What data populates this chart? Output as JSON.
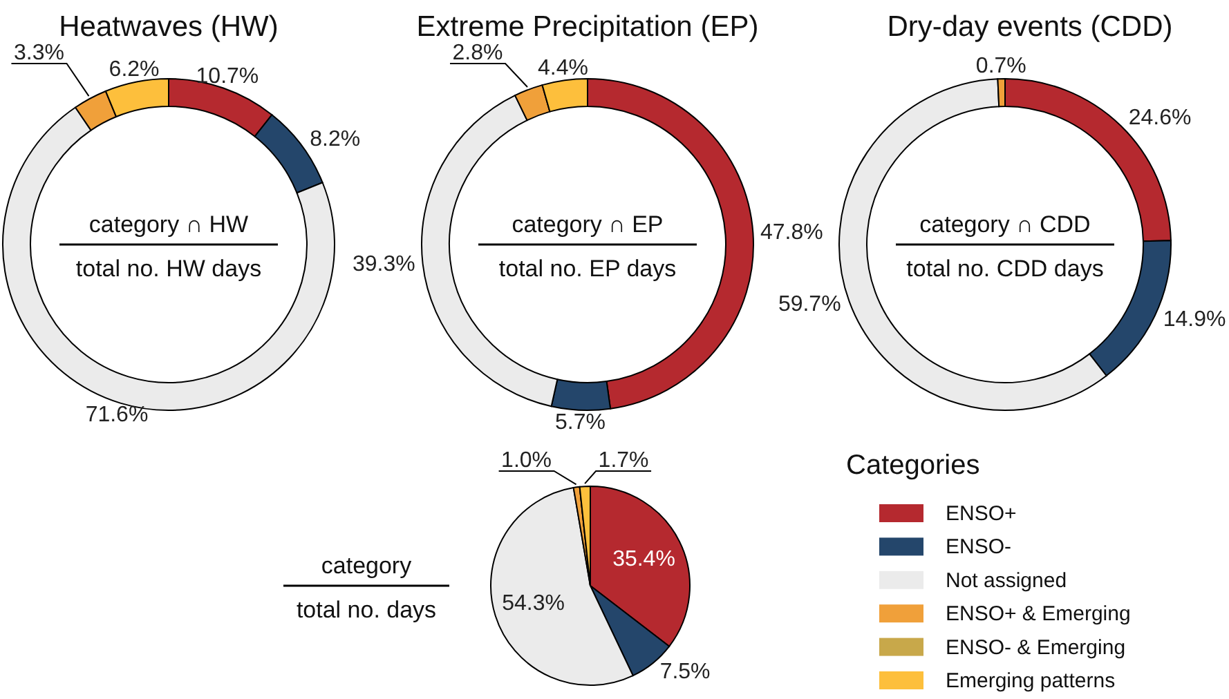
{
  "chart_data": [
    {
      "type": "donut",
      "title": "Heatwaves (HW)",
      "categories": [
        null,
        null,
        null,
        null,
        null
      ],
      "values": [
        10.7,
        8.2,
        71.6,
        3.3,
        6.2
      ],
      "colors": [
        "#b5292f",
        "#24466b",
        "#ebebeb",
        "#f0a03a",
        "#fdbf3c"
      ],
      "value_labels": [
        "10.7%",
        "8.2%",
        "71.6%",
        "3.3%",
        "6.2%"
      ],
      "annotations": [
        "category ∩ HW",
        "total no. HW days"
      ]
    },
    {
      "type": "donut",
      "title": "Extreme Precipitation (EP)",
      "categories": [
        null,
        null,
        null,
        null,
        null
      ],
      "values": [
        47.8,
        5.7,
        39.3,
        2.8,
        4.4
      ],
      "colors": [
        "#b5292f",
        "#24466b",
        "#ebebeb",
        "#f0a03a",
        "#fdbf3c"
      ],
      "value_labels": [
        "47.8%",
        "5.7%",
        "39.3%",
        "2.8%",
        "4.4%"
      ],
      "annotations": [
        "category ∩ EP",
        "total no. EP days"
      ]
    },
    {
      "type": "donut",
      "title": "Dry-day events (CDD)",
      "categories": [
        null,
        null,
        null,
        null
      ],
      "values": [
        24.6,
        14.9,
        59.7,
        0.7
      ],
      "colors": [
        "#b5292f",
        "#24466b",
        "#ebebeb",
        "#f0a03a"
      ],
      "value_labels": [
        "24.6%",
        "14.9%",
        "59.7%",
        "0.7%"
      ],
      "annotations": [
        "category ∩ CDD",
        "total no. CDD days"
      ]
    },
    {
      "type": "pie",
      "legend_title": "Categories",
      "categories": [
        "ENSO+",
        "ENSO-",
        "Not assigned",
        "ENSO+ & Emerging",
        "ENSO- & Emerging",
        "Emerging patterns"
      ],
      "values": [
        35.4,
        7.5,
        54.3,
        1.0,
        0,
        1.7
      ],
      "colors": [
        "#b5292f",
        "#24466b",
        "#ebebeb",
        "#f0a03a",
        "#c8a84a",
        "#fdbf3c"
      ],
      "value_labels": [
        "35.4%",
        "7.5%",
        "54.3%",
        "1.0%",
        null,
        "1.7%"
      ],
      "legend": "right",
      "annotations": [
        "category",
        "total no. days"
      ]
    }
  ]
}
